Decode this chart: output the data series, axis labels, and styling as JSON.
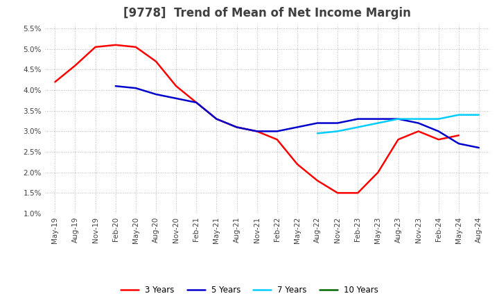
{
  "title": "[9778]  Trend of Mean of Net Income Margin",
  "ylim": [
    0.01,
    0.056
  ],
  "yticks": [
    0.01,
    0.015,
    0.02,
    0.025,
    0.03,
    0.035,
    0.04,
    0.045,
    0.05,
    0.055
  ],
  "ytick_labels": [
    "1.0%",
    "1.5%",
    "2.0%",
    "2.5%",
    "3.0%",
    "3.5%",
    "4.0%",
    "4.5%",
    "5.0%",
    "5.5%"
  ],
  "x_labels": [
    "May-19",
    "Aug-19",
    "Nov-19",
    "Feb-20",
    "May-20",
    "Aug-20",
    "Nov-20",
    "Feb-21",
    "May-21",
    "Aug-21",
    "Nov-21",
    "Feb-22",
    "May-22",
    "Aug-22",
    "Nov-22",
    "Feb-23",
    "May-23",
    "Aug-23",
    "Nov-23",
    "Feb-24",
    "May-24",
    "Aug-24"
  ],
  "series": {
    "3 Years": {
      "color": "#FF0000",
      "values": [
        0.042,
        0.046,
        0.0505,
        0.051,
        0.0505,
        0.047,
        0.041,
        0.037,
        0.033,
        0.031,
        0.03,
        0.028,
        0.022,
        0.018,
        0.015,
        0.015,
        0.02,
        0.028,
        0.03,
        0.028,
        0.029,
        null
      ]
    },
    "5 Years": {
      "color": "#0000CC",
      "values": [
        null,
        null,
        null,
        0.041,
        0.0405,
        0.039,
        0.038,
        0.037,
        0.033,
        0.031,
        0.03,
        0.03,
        0.031,
        0.032,
        0.032,
        0.033,
        0.033,
        0.033,
        0.032,
        0.03,
        0.027,
        0.026
      ]
    },
    "7 Years": {
      "color": "#00CCFF",
      "values": [
        null,
        null,
        null,
        null,
        null,
        null,
        null,
        null,
        null,
        null,
        null,
        null,
        null,
        0.0295,
        0.03,
        0.031,
        0.032,
        0.033,
        0.033,
        0.033,
        0.034,
        0.034
      ]
    },
    "10 Years": {
      "color": "#006600",
      "values": [
        null,
        null,
        null,
        null,
        null,
        null,
        null,
        null,
        null,
        null,
        null,
        null,
        null,
        null,
        null,
        null,
        null,
        null,
        null,
        null,
        0.034,
        null
      ]
    }
  },
  "background_color": "#FFFFFF",
  "grid_color": "#999999",
  "title_fontsize": 12,
  "title_color": "#404040",
  "tick_fontsize": 7.5,
  "legend_fontsize": 8.5,
  "line_width": 1.8
}
